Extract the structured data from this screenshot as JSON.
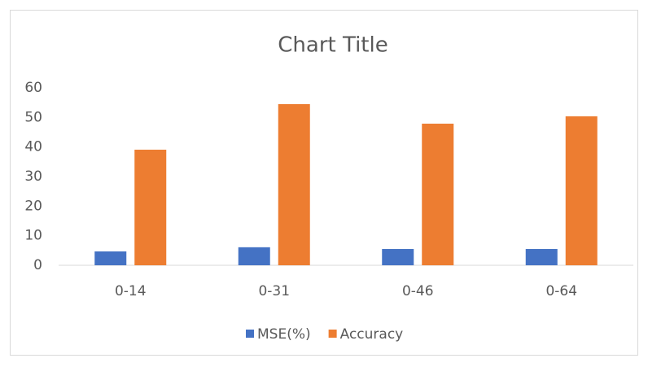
{
  "chart_data": {
    "type": "bar",
    "title": "Chart Title",
    "categories": [
      "0-14",
      "0-31",
      "0-46",
      "0-64"
    ],
    "series": [
      {
        "name": "MSE(%)",
        "color": "#4472c4",
        "values": [
          4.7,
          6.1,
          5.5,
          5.5
        ]
      },
      {
        "name": "Accuracy",
        "color": "#ed7d31",
        "values": [
          39.1,
          54.5,
          47.9,
          50.4
        ]
      }
    ],
    "ylim": [
      0,
      60
    ],
    "yticks": [
      0,
      10,
      20,
      30,
      40,
      50,
      60
    ],
    "grid": false
  }
}
